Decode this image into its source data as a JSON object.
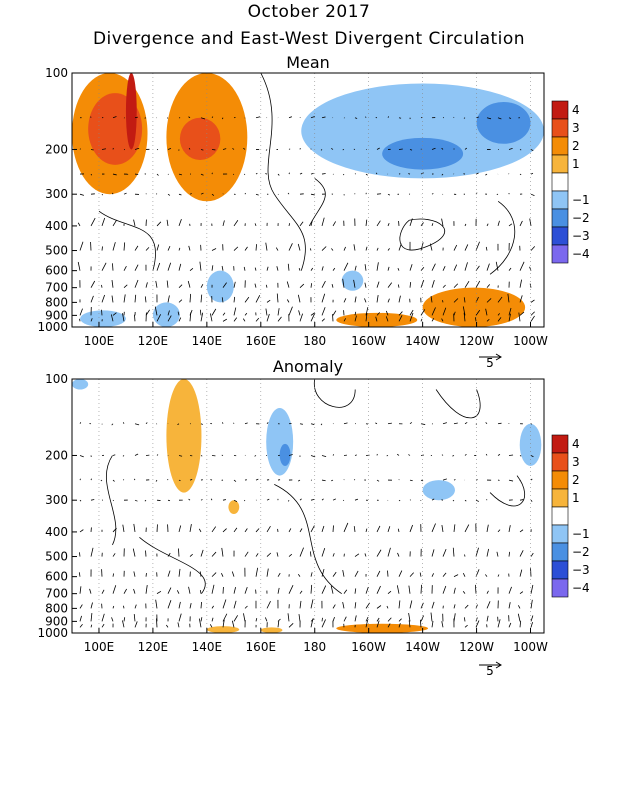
{
  "header": {
    "title": "October 2017",
    "subtitle": "Divergence and East-West Divergent Circulation"
  },
  "colors": {
    "scale": [
      "#7b68ee",
      "#2c4fd6",
      "#4a90e2",
      "#8fc5f5",
      "#ffffff",
      "#f7b43b",
      "#f48c06",
      "#e8501a",
      "#c21b12"
    ],
    "contour": "#000000",
    "vector": "#000000"
  },
  "colorbar": {
    "labels": [
      "4",
      "3",
      "2",
      "1",
      "-1",
      "-2",
      "-3",
      "-4"
    ]
  },
  "chart_data": [
    {
      "type": "heatmap",
      "title": "Mean",
      "xlabel": "",
      "ylabel": "",
      "x_ticks": [
        "100E",
        "120E",
        "140E",
        "160E",
        "180",
        "160W",
        "140W",
        "120W",
        "100W"
      ],
      "x_range": [
        90,
        265
      ],
      "y_ticks": [
        "100",
        "200",
        "300",
        "400",
        "500",
        "600",
        "700",
        "800",
        "900",
        "1000"
      ],
      "y_range": [
        1000,
        100
      ],
      "y_scale": "log",
      "vector_reference": "5",
      "divergence_regions": [
        {
          "lon": [
            90,
            118
          ],
          "p": [
            100,
            300
          ],
          "value": 2
        },
        {
          "lon": [
            96,
            116
          ],
          "p": [
            120,
            230
          ],
          "value": 3
        },
        {
          "lon": [
            110,
            114
          ],
          "p": [
            100,
            200
          ],
          "value": 4
        },
        {
          "lon": [
            125,
            155
          ],
          "p": [
            100,
            320
          ],
          "value": 2
        },
        {
          "lon": [
            130,
            145
          ],
          "p": [
            150,
            220
          ],
          "value": 3
        },
        {
          "lon": [
            175,
            265
          ],
          "p": [
            110,
            260
          ],
          "value": -1
        },
        {
          "lon": [
            205,
            235
          ],
          "p": [
            180,
            240
          ],
          "value": -2
        },
        {
          "lon": [
            240,
            260
          ],
          "p": [
            130,
            190
          ],
          "value": -2
        },
        {
          "lon": [
            140,
            150
          ],
          "p": [
            600,
            800
          ],
          "value": -1
        },
        {
          "lon": [
            120,
            130
          ],
          "p": [
            800,
            1000
          ],
          "value": -1
        },
        {
          "lon": [
            93,
            110
          ],
          "p": [
            860,
            1000
          ],
          "value": -1
        },
        {
          "lon": [
            190,
            198
          ],
          "p": [
            600,
            720
          ],
          "value": -1
        },
        {
          "lon": [
            188,
            218
          ],
          "p": [
            880,
            1000
          ],
          "value": 2
        },
        {
          "lon": [
            220,
            258
          ],
          "p": [
            700,
            1000
          ],
          "value": 2
        }
      ]
    },
    {
      "type": "heatmap",
      "title": "Anomaly",
      "xlabel": "",
      "ylabel": "",
      "x_ticks": [
        "100E",
        "120E",
        "140E",
        "160E",
        "180",
        "160W",
        "140W",
        "120W",
        "100W"
      ],
      "x_range": [
        90,
        265
      ],
      "y_ticks": [
        "100",
        "200",
        "300",
        "400",
        "500",
        "600",
        "700",
        "800",
        "900",
        "1000"
      ],
      "y_range": [
        1000,
        100
      ],
      "y_scale": "log",
      "vector_reference": "5",
      "divergence_regions": [
        {
          "lon": [
            125,
            138
          ],
          "p": [
            100,
            280
          ],
          "value": 1
        },
        {
          "lon": [
            148,
            152
          ],
          "p": [
            300,
            340
          ],
          "value": 1
        },
        {
          "lon": [
            162,
            172
          ],
          "p": [
            130,
            240
          ],
          "value": -1
        },
        {
          "lon": [
            167,
            171
          ],
          "p": [
            180,
            220
          ],
          "value": -2
        },
        {
          "lon": [
            220,
            232
          ],
          "p": [
            250,
            300
          ],
          "value": -1
        },
        {
          "lon": [
            90,
            96
          ],
          "p": [
            100,
            110
          ],
          "value": -1
        },
        {
          "lon": [
            256,
            264
          ],
          "p": [
            150,
            220
          ],
          "value": -1
        },
        {
          "lon": [
            140,
            152
          ],
          "p": [
            940,
            1000
          ],
          "value": 1
        },
        {
          "lon": [
            160,
            168
          ],
          "p": [
            950,
            1000
          ],
          "value": 1
        },
        {
          "lon": [
            188,
            222
          ],
          "p": [
            920,
            1000
          ],
          "value": 2
        }
      ]
    }
  ]
}
